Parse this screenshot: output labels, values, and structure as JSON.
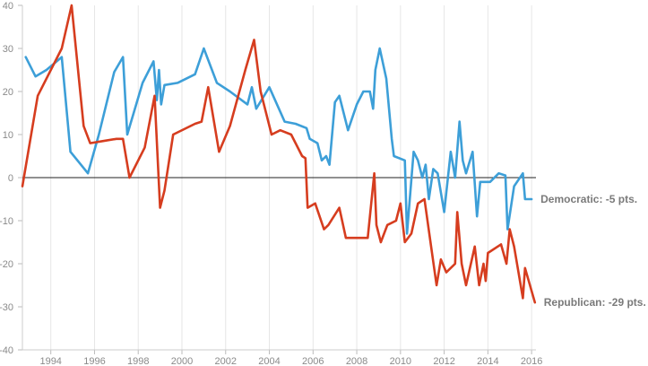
{
  "chart_data": {
    "type": "line",
    "title": "",
    "xlabel": "",
    "ylabel": "",
    "xlim": [
      1992.7,
      2016.2
    ],
    "ylim": [
      -40,
      40
    ],
    "x_ticks": [
      "1994",
      "1996",
      "1998",
      "2000",
      "2002",
      "2004",
      "2006",
      "2008",
      "2010",
      "2012",
      "2014",
      "2016"
    ],
    "y_ticks": [
      "40",
      "30",
      "20",
      "10",
      "0",
      "-10",
      "-20",
      "-30",
      "-40"
    ],
    "grid": "vertical",
    "zero_line": true,
    "legend": "none",
    "series": [
      {
        "name": "Democratic",
        "end_label": "Democratic: -5 pts.",
        "color": "#3d9fd8",
        "points": [
          [
            1992.85,
            28
          ],
          [
            1993.3,
            23.5
          ],
          [
            1993.8,
            25
          ],
          [
            1994.5,
            28
          ],
          [
            1994.9,
            6
          ],
          [
            1995.7,
            1
          ],
          [
            1996.2,
            10
          ],
          [
            1996.9,
            24.5
          ],
          [
            1997.3,
            28
          ],
          [
            1997.5,
            10
          ],
          [
            1998.2,
            22
          ],
          [
            1998.7,
            27
          ],
          [
            1998.85,
            18
          ],
          [
            1998.95,
            25
          ],
          [
            1999.05,
            17
          ],
          [
            1999.2,
            21.5
          ],
          [
            1999.8,
            22
          ],
          [
            2000.6,
            24
          ],
          [
            2001.0,
            30
          ],
          [
            2001.6,
            22
          ],
          [
            2002.2,
            20
          ],
          [
            2003.0,
            17
          ],
          [
            2003.2,
            21
          ],
          [
            2003.4,
            16
          ],
          [
            2004.0,
            21
          ],
          [
            2004.7,
            13
          ],
          [
            2005.2,
            12.5
          ],
          [
            2005.7,
            11.5
          ],
          [
            2005.85,
            9
          ],
          [
            2006.2,
            8
          ],
          [
            2006.4,
            4
          ],
          [
            2006.6,
            5
          ],
          [
            2006.75,
            3
          ],
          [
            2007.0,
            17.5
          ],
          [
            2007.2,
            19
          ],
          [
            2007.6,
            11
          ],
          [
            2008.0,
            17
          ],
          [
            2008.3,
            20
          ],
          [
            2008.6,
            20
          ],
          [
            2008.75,
            16
          ],
          [
            2008.85,
            25
          ],
          [
            2009.05,
            30
          ],
          [
            2009.35,
            23
          ],
          [
            2009.6,
            9
          ],
          [
            2009.7,
            5
          ],
          [
            2010.2,
            4
          ],
          [
            2010.3,
            -13
          ],
          [
            2010.6,
            6
          ],
          [
            2010.8,
            4
          ],
          [
            2011.0,
            0
          ],
          [
            2011.15,
            3
          ],
          [
            2011.3,
            -5
          ],
          [
            2011.5,
            2
          ],
          [
            2011.7,
            1
          ],
          [
            2012.0,
            -8
          ],
          [
            2012.3,
            6
          ],
          [
            2012.5,
            0
          ],
          [
            2012.7,
            13
          ],
          [
            2012.85,
            4
          ],
          [
            2013.0,
            1
          ],
          [
            2013.3,
            6
          ],
          [
            2013.5,
            -9
          ],
          [
            2013.65,
            -1
          ],
          [
            2014.1,
            -1
          ],
          [
            2014.5,
            1
          ],
          [
            2014.8,
            0.5
          ],
          [
            2014.9,
            -12
          ],
          [
            2015.2,
            -2
          ],
          [
            2015.6,
            1
          ],
          [
            2015.7,
            -5
          ],
          [
            2016.0,
            -5
          ]
        ]
      },
      {
        "name": "Republican",
        "end_label": "Republican: -29 pts.",
        "color": "#d63d1f",
        "points": [
          [
            1992.7,
            -2
          ],
          [
            1993.4,
            19
          ],
          [
            1994.5,
            30
          ],
          [
            1994.95,
            40
          ],
          [
            1995.5,
            12
          ],
          [
            1995.8,
            8
          ],
          [
            1996.4,
            8.5
          ],
          [
            1997.0,
            9
          ],
          [
            1997.3,
            9
          ],
          [
            1997.6,
            0
          ],
          [
            1998.3,
            7
          ],
          [
            1998.75,
            19
          ],
          [
            1999.0,
            -7
          ],
          [
            1999.2,
            -3
          ],
          [
            1999.6,
            10
          ],
          [
            2000.6,
            12.5
          ],
          [
            2000.9,
            13
          ],
          [
            2001.2,
            21
          ],
          [
            2001.7,
            6
          ],
          [
            2002.2,
            12
          ],
          [
            2002.9,
            25
          ],
          [
            2003.3,
            32
          ],
          [
            2003.6,
            20
          ],
          [
            2004.1,
            10
          ],
          [
            2004.5,
            11
          ],
          [
            2005.0,
            10
          ],
          [
            2005.5,
            5
          ],
          [
            2005.65,
            4.5
          ],
          [
            2005.75,
            -7
          ],
          [
            2006.1,
            -6
          ],
          [
            2006.5,
            -12
          ],
          [
            2006.7,
            -11
          ],
          [
            2007.2,
            -7
          ],
          [
            2007.5,
            -14
          ],
          [
            2008.5,
            -14
          ],
          [
            2008.8,
            1
          ],
          [
            2008.9,
            -11
          ],
          [
            2009.1,
            -15
          ],
          [
            2009.4,
            -11
          ],
          [
            2009.8,
            -10
          ],
          [
            2010.0,
            -6
          ],
          [
            2010.2,
            -15
          ],
          [
            2010.5,
            -13
          ],
          [
            2010.8,
            -6
          ],
          [
            2011.1,
            -5
          ],
          [
            2011.4,
            -16
          ],
          [
            2011.65,
            -25
          ],
          [
            2011.85,
            -19
          ],
          [
            2012.1,
            -22
          ],
          [
            2012.5,
            -20
          ],
          [
            2012.6,
            -8
          ],
          [
            2012.8,
            -20
          ],
          [
            2013.0,
            -25
          ],
          [
            2013.4,
            -16
          ],
          [
            2013.6,
            -25
          ],
          [
            2013.8,
            -20
          ],
          [
            2013.9,
            -24
          ],
          [
            2014.0,
            -17.5
          ],
          [
            2014.6,
            -15.5
          ],
          [
            2014.85,
            -20
          ],
          [
            2015.0,
            -12
          ],
          [
            2015.2,
            -16
          ],
          [
            2015.6,
            -28
          ],
          [
            2015.7,
            -21
          ],
          [
            2016.15,
            -29
          ]
        ]
      }
    ]
  }
}
